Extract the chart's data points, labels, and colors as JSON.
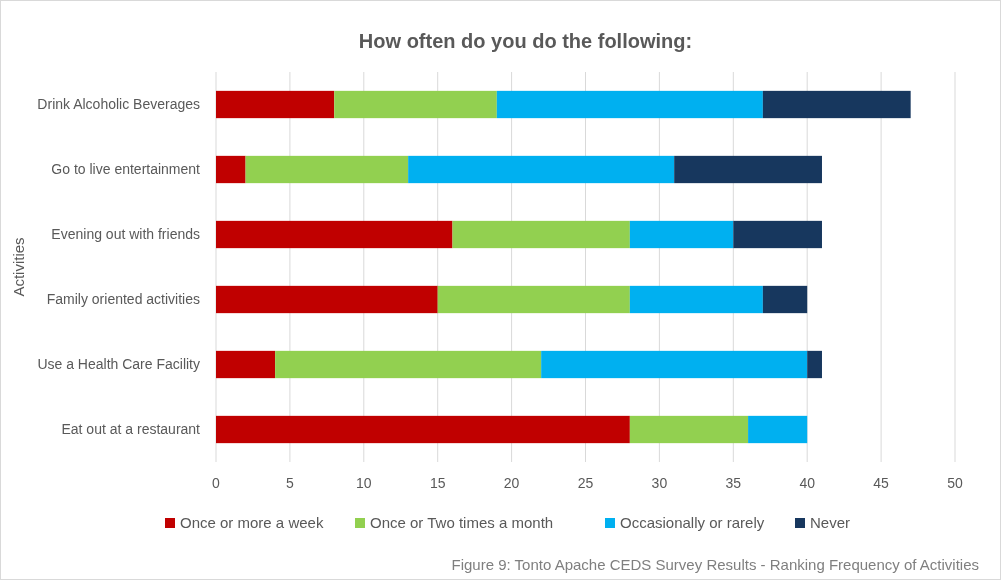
{
  "chart_data": {
    "type": "bar",
    "orientation": "horizontal",
    "stacked": true,
    "title": "How often do you do the following:",
    "ylabel": "Activities",
    "categories": [
      "Drink Alcoholic Beverages",
      "Go to live entertainment",
      "Evening out with friends",
      "Family oriented activities",
      "Use a Health Care Facility",
      "Eat out at a restaurant"
    ],
    "series": [
      {
        "name": "Once or more a week",
        "color": "#c00000",
        "values": [
          8,
          2,
          16,
          15,
          4,
          28
        ]
      },
      {
        "name": "Once or Two times a month",
        "color": "#92d050",
        "values": [
          11,
          11,
          12,
          13,
          18,
          8
        ]
      },
      {
        "name": "Occasionally or rarely",
        "color": "#00b0f0",
        "values": [
          18,
          18,
          7,
          9,
          18,
          4
        ]
      },
      {
        "name": "Never",
        "color": "#17375e",
        "values": [
          10,
          10,
          6,
          3,
          1,
          0
        ]
      }
    ],
    "xlim": [
      0,
      50
    ],
    "xticks": [
      0,
      5,
      10,
      15,
      20,
      25,
      30,
      35,
      40,
      45,
      50
    ],
    "grid": "x",
    "legend": "bottom",
    "annotations": [
      "Figure 9: Tonto Apache CEDS Survey Results - Ranking Frequency of Activities"
    ]
  }
}
